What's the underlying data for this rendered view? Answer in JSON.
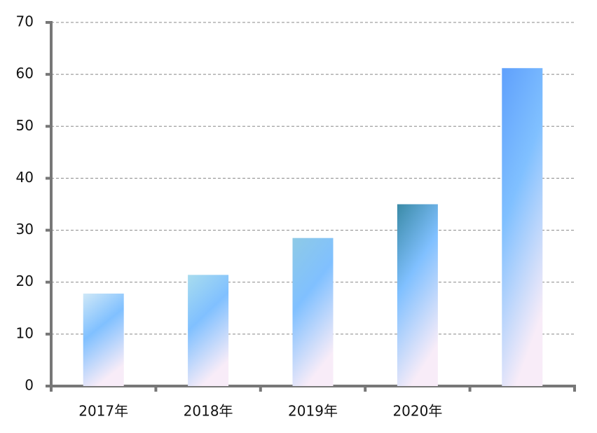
{
  "chart_data": {
    "type": "bar",
    "categories": [
      "2017年",
      "2018年",
      "2019年",
      "2020年",
      null
    ],
    "values": [
      17.8,
      21.4,
      28.5,
      35,
      61.2
    ],
    "colors": [
      "#cfe8f7",
      "#a8dcee",
      "#8ecae6",
      "#3a8aa6",
      "#5fa0fc"
    ],
    "ylim": [
      0,
      70
    ],
    "yticks": [
      0,
      10,
      20,
      30,
      40,
      50,
      60,
      70
    ],
    "grid": true
  }
}
